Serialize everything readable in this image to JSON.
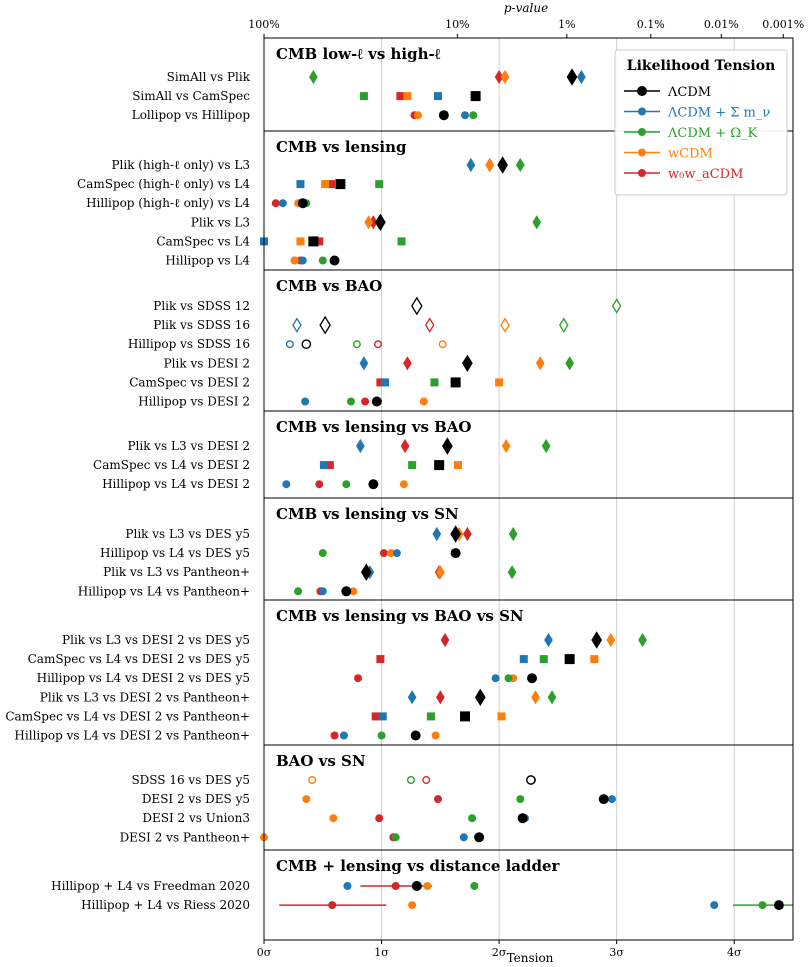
{
  "chart_data": {
    "type": "scatter",
    "xlabel": "Tension",
    "top_axis_label": "p-value",
    "xlim": [
      0,
      4.5
    ],
    "x_ticks": [
      {
        "value": 0,
        "label": "0σ"
      },
      {
        "value": 1,
        "label": "1σ"
      },
      {
        "value": 2,
        "label": "2σ"
      },
      {
        "value": 3,
        "label": "3σ"
      },
      {
        "value": 4,
        "label": "4σ"
      }
    ],
    "p_ticks": [
      {
        "sigma": 0.0,
        "label": "100%"
      },
      {
        "sigma": 1.645,
        "label": "10%"
      },
      {
        "sigma": 2.576,
        "label": "1%"
      },
      {
        "sigma": 3.29,
        "label": "0.1%"
      },
      {
        "sigma": 3.89,
        "label": "0.01%"
      },
      {
        "sigma": 4.417,
        "label": "0.001%"
      }
    ],
    "grid": true,
    "legend": {
      "title": "Likelihood Tension",
      "placement": "top-right",
      "items": [
        {
          "key": "LCDM",
          "label": "ΛCDM"
        },
        {
          "key": "mnu",
          "label": "ΛCDM + Σ m_ν"
        },
        {
          "key": "OmK",
          "label": "ΛCDM + Ω_K"
        },
        {
          "key": "wCDM",
          "label": "wCDM"
        },
        {
          "key": "w0wa",
          "label": "w₀w_aCDM"
        }
      ]
    },
    "series_colors": {
      "LCDM": "#000000",
      "mnu": "#1f77b4",
      "OmK": "#2ca02c",
      "wCDM": "#ff7f0e",
      "w0wa": "#d62728"
    },
    "panels": [
      {
        "title": "CMB low-ℓ vs high-ℓ",
        "rows": [
          {
            "label": "SimAll vs Plik",
            "marker": "diamond",
            "values": {
              "LCDM": 2.62,
              "mnu": 2.7,
              "OmK": 0.42,
              "wCDM": 2.05,
              "w0wa": 2.0
            }
          },
          {
            "label": "SimAll vs CamSpec",
            "marker": "square",
            "values": {
              "LCDM": 1.8,
              "mnu": 1.48,
              "OmK": 0.85,
              "wCDM": 1.22,
              "w0wa": 1.16
            }
          },
          {
            "label": "Lollipop vs Hillipop",
            "marker": "circle",
            "values": {
              "LCDM": 1.53,
              "mnu": 1.71,
              "OmK": 1.78,
              "wCDM": 1.31,
              "w0wa": 1.28
            }
          }
        ]
      },
      {
        "title": "CMB vs lensing",
        "rows": [
          {
            "label": "Plik (high-ℓ only) vs L3",
            "marker": "diamond",
            "values": {
              "LCDM": 2.03,
              "mnu": 1.76,
              "OmK": 2.18,
              "wCDM": 1.92,
              "w0wa": 1.92
            }
          },
          {
            "label": "CamSpec (high-ℓ only) vs L4",
            "marker": "square",
            "values": {
              "LCDM": 0.65,
              "mnu": 0.31,
              "OmK": 0.98,
              "wCDM": 0.52,
              "w0wa": 0.57
            }
          },
          {
            "label": "Hillipop (high-ℓ only) vs L4",
            "marker": "circle",
            "values": {
              "LCDM": 0.33,
              "mnu": 0.16,
              "OmK": 0.36,
              "wCDM": 0.29,
              "w0wa": 0.1
            }
          },
          {
            "label": "Plik vs L3",
            "marker": "diamond",
            "values": {
              "LCDM": 0.99,
              "mnu": 0.98,
              "OmK": 2.32,
              "wCDM": 0.89,
              "w0wa": 0.93
            }
          },
          {
            "label": "CamSpec vs L4",
            "marker": "square",
            "values": {
              "LCDM": 0.42,
              "mnu": 0.0,
              "OmK": 1.17,
              "wCDM": 0.31,
              "w0wa": 0.47
            }
          },
          {
            "label": "Hillipop vs L4",
            "marker": "circle",
            "values": {
              "LCDM": 0.6,
              "mnu": 0.33,
              "OmK": 0.5,
              "wCDM": 0.26,
              "w0wa": 0.31
            }
          }
        ]
      },
      {
        "title": "CMB vs BAO",
        "rows": [
          {
            "label": "Plik vs SDSS 12",
            "marker": "diamond-open",
            "values": {
              "LCDM": 1.3,
              "OmK": 3.0
            }
          },
          {
            "label": "Plik vs SDSS 16",
            "marker": "diamond-open",
            "values": {
              "LCDM": 0.52,
              "mnu": 0.28,
              "OmK": 2.55,
              "wCDM": 2.05,
              "w0wa": 1.41
            }
          },
          {
            "label": "Hillipop vs SDSS 16",
            "marker": "circle-open",
            "values": {
              "LCDM": 0.36,
              "mnu": 0.22,
              "OmK": 0.79,
              "wCDM": 1.52,
              "w0wa": 0.97
            }
          },
          {
            "label": "Plik vs DESI 2",
            "marker": "diamond",
            "values": {
              "LCDM": 1.73,
              "mnu": 0.85,
              "OmK": 2.6,
              "wCDM": 2.35,
              "w0wa": 1.22
            }
          },
          {
            "label": "CamSpec vs DESI 2",
            "marker": "square",
            "values": {
              "LCDM": 1.63,
              "mnu": 1.03,
              "OmK": 1.45,
              "wCDM": 2.0,
              "w0wa": 0.99
            }
          },
          {
            "label": "Hillipop vs DESI 2",
            "marker": "circle",
            "values": {
              "LCDM": 0.96,
              "mnu": 0.35,
              "OmK": 0.74,
              "wCDM": 1.36,
              "w0wa": 0.86
            }
          }
        ]
      },
      {
        "title": "CMB vs lensing vs BAO",
        "rows": [
          {
            "label": "Plik vs L3 vs DESI 2",
            "marker": "diamond",
            "values": {
              "LCDM": 1.56,
              "mnu": 0.82,
              "OmK": 2.4,
              "wCDM": 2.06,
              "w0wa": 1.2
            }
          },
          {
            "label": "CamSpec vs L4 vs DESI 2",
            "marker": "square",
            "values": {
              "LCDM": 1.49,
              "mnu": 0.51,
              "OmK": 1.26,
              "wCDM": 1.65,
              "w0wa": 0.56
            }
          },
          {
            "label": "Hillipop vs L4 vs DESI 2",
            "marker": "circle",
            "values": {
              "LCDM": 0.93,
              "mnu": 0.19,
              "OmK": 0.7,
              "wCDM": 1.19,
              "w0wa": 0.47
            }
          }
        ]
      },
      {
        "title": "CMB vs lensing vs SN",
        "rows": [
          {
            "label": "Plik vs L3 vs DES y5",
            "marker": "diamond",
            "values": {
              "LCDM": 1.63,
              "mnu": 1.47,
              "OmK": 2.12,
              "wCDM": 1.66,
              "w0wa": 1.73
            }
          },
          {
            "label": "Hillipop vs L4 vs DES y5",
            "marker": "circle",
            "values": {
              "LCDM": 1.63,
              "mnu": 1.13,
              "OmK": 0.5,
              "wCDM": 1.08,
              "w0wa": 1.02
            }
          },
          {
            "label": "Plik vs L3 vs Pantheon+",
            "marker": "diamond",
            "values": {
              "LCDM": 0.87,
              "mnu": 0.9,
              "OmK": 2.11,
              "wCDM": 1.5,
              "w0wa": 1.49
            }
          },
          {
            "label": "Hillipop vs L4 vs Pantheon+",
            "marker": "circle",
            "values": {
              "LCDM": 0.7,
              "mnu": 0.5,
              "OmK": 0.29,
              "wCDM": 0.76,
              "w0wa": 0.48
            }
          }
        ]
      },
      {
        "title": "CMB vs lensing vs BAO vs SN",
        "rows": [
          {
            "label": "Plik vs L3 vs DESI 2 vs DES y5",
            "marker": "diamond",
            "values": {
              "LCDM": 2.83,
              "mnu": 2.42,
              "OmK": 3.22,
              "wCDM": 2.95,
              "w0wa": 1.54
            }
          },
          {
            "label": "CamSpec vs L4 vs DESI 2 vs DES y5",
            "marker": "square",
            "values": {
              "LCDM": 2.6,
              "mnu": 2.21,
              "OmK": 2.38,
              "wCDM": 2.81,
              "w0wa": 0.99
            }
          },
          {
            "label": "Hillipop vs L4 vs DESI 2 vs DES y5",
            "marker": "circle",
            "values": {
              "LCDM": 2.28,
              "mnu": 1.97,
              "OmK": 2.08,
              "wCDM": 2.12,
              "w0wa": 0.8
            }
          },
          {
            "label": "Plik vs L3 vs DESI 2 vs Pantheon+",
            "marker": "diamond",
            "values": {
              "LCDM": 1.84,
              "mnu": 1.26,
              "OmK": 2.45,
              "wCDM": 2.31,
              "w0wa": 1.5
            }
          },
          {
            "label": "CamSpec vs L4 vs DESI 2 vs Pantheon+",
            "marker": "square",
            "values": {
              "LCDM": 1.71,
              "mnu": 1.01,
              "OmK": 1.42,
              "wCDM": 2.02,
              "w0wa": 0.95
            }
          },
          {
            "label": "Hillipop vs L4 vs DESI 2 vs Pantheon+",
            "marker": "circle",
            "values": {
              "LCDM": 1.29,
              "mnu": 0.68,
              "OmK": 1.0,
              "wCDM": 1.46,
              "w0wa": 0.6
            }
          }
        ]
      },
      {
        "title": "BAO vs SN",
        "rows": [
          {
            "label": "SDSS 16 vs DES y5",
            "marker": "circle-open",
            "values": {
              "LCDM": 2.27,
              "mnu": 2.28,
              "OmK": 1.25,
              "wCDM": 0.41,
              "w0wa": 1.38
            }
          },
          {
            "label": "DESI 2 vs DES y5",
            "marker": "circle",
            "values": {
              "LCDM": 2.89,
              "mnu": 2.96,
              "OmK": 2.18,
              "wCDM": 0.36,
              "w0wa": 1.48
            }
          },
          {
            "label": "DESI 2 vs Union3",
            "marker": "circle",
            "values": {
              "LCDM": 2.2,
              "mnu": 2.22,
              "OmK": 1.77,
              "wCDM": 0.59,
              "w0wa": 0.98
            }
          },
          {
            "label": "DESI 2 vs Pantheon+",
            "marker": "circle",
            "values": {
              "LCDM": 1.83,
              "mnu": 1.7,
              "OmK": 1.12,
              "wCDM": 0.0,
              "w0wa": 1.1
            }
          }
        ]
      },
      {
        "title": "CMB + lensing vs distance ladder",
        "rows": [
          {
            "label": "Hillipop + L4 vs Freedman 2020",
            "marker": "circle",
            "values": {
              "LCDM": 1.3,
              "mnu": 0.71,
              "OmK": 1.79,
              "wCDM": 1.39,
              "w0wa": 1.12
            },
            "errorbars": {
              "w0wa": [
                0.82,
                1.43
              ]
            }
          },
          {
            "label": "Hillipop + L4 vs Riess 2020",
            "marker": "circle",
            "values": {
              "LCDM": 4.38,
              "mnu": 3.83,
              "OmK": 4.24,
              "wCDM": 1.26,
              "w0wa": 0.58
            },
            "errorbars": {
              "w0wa": [
                0.13,
                1.04
              ],
              "OmK": [
                3.99,
                4.5
              ]
            }
          }
        ]
      }
    ]
  }
}
